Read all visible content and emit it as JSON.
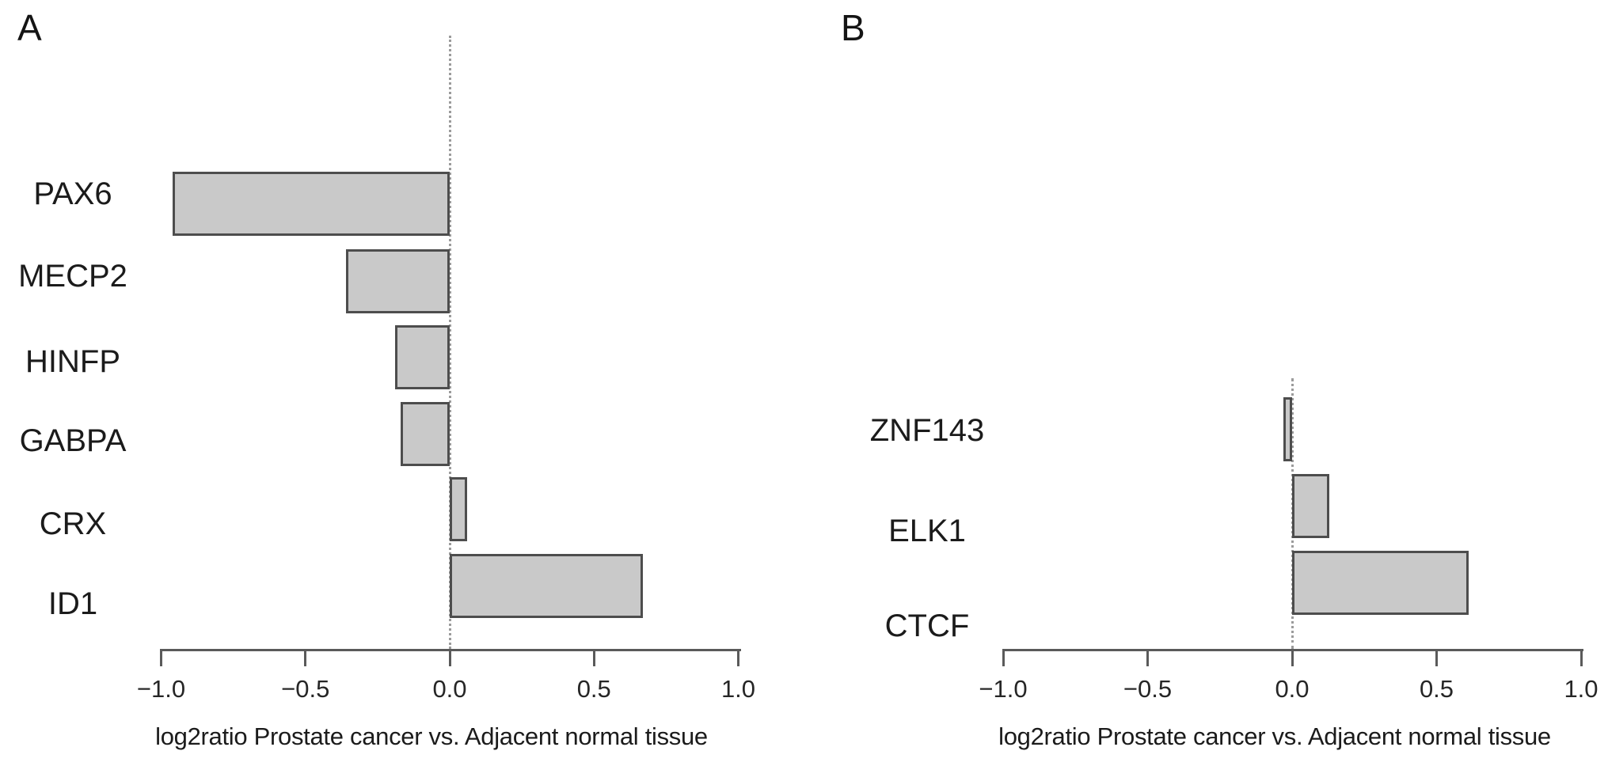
{
  "figure": {
    "background_color": "#ffffff",
    "bar_fill_color": "#c9c9c9",
    "bar_border_color": "#4d4d4d",
    "axis_color": "#5a5a5a"
  },
  "chart_data": [
    {
      "type": "bar",
      "orientation": "horizontal",
      "panel_label": "A",
      "categories": [
        "PAX6",
        "MECP2",
        "HINFP",
        "GABPA",
        "CRX",
        "ID1"
      ],
      "values": [
        -0.96,
        -0.36,
        -0.19,
        -0.17,
        0.06,
        0.67
      ],
      "xlabel": "log2ratio Prostate cancer vs. Adjacent normal tissue",
      "xlim": [
        -1.0,
        1.0
      ],
      "x_ticks": [
        -1.0,
        -0.5,
        0.0,
        0.5,
        1.0
      ],
      "x_tick_labels": [
        "−1.0",
        "−0.5",
        "0.0",
        "0.5",
        "1.0"
      ],
      "zero_reference_line": "dotted",
      "grid": false,
      "legend": false
    },
    {
      "type": "bar",
      "orientation": "horizontal",
      "panel_label": "B",
      "categories": [
        "ZNF143",
        "ELK1",
        "CTCF"
      ],
      "values": [
        -0.03,
        0.13,
        0.61
      ],
      "xlabel": "log2ratio Prostate cancer vs. Adjacent normal tissue",
      "xlim": [
        -1.0,
        1.0
      ],
      "x_ticks": [
        -1.0,
        -0.5,
        0.0,
        0.5,
        1.0
      ],
      "x_tick_labels": [
        "−1.0",
        "−0.5",
        "0.0",
        "0.5",
        "1.0"
      ],
      "zero_reference_line": "dotted",
      "grid": false,
      "legend": false
    }
  ]
}
